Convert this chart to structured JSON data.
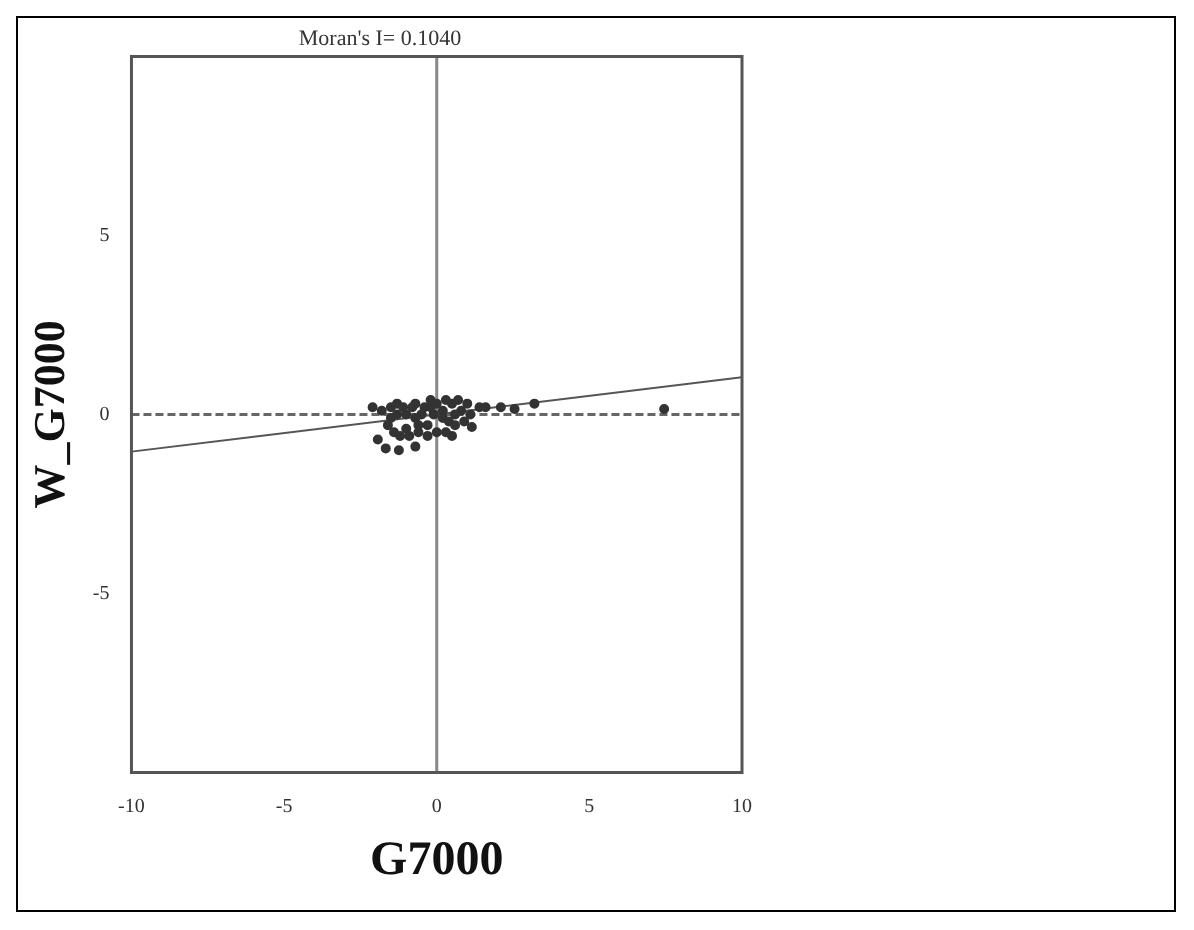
{
  "chart_data": {
    "type": "scatter",
    "title": "Moran's I= 0.1040",
    "xlabel": "G7000",
    "ylabel": "W_G7000",
    "xlim": [
      -10,
      10
    ],
    "xticks": [
      -10,
      -5,
      0,
      5,
      10
    ],
    "ylim": [
      -10,
      10
    ],
    "yticks": [
      -5,
      0,
      5
    ],
    "grid": false,
    "legend": false,
    "ref_lines": [
      {
        "axis": "x",
        "value": 0,
        "color": "#888888",
        "line_style": "solid"
      },
      {
        "axis": "y",
        "value": 0,
        "color": "#666666",
        "line_style": "dashed"
      }
    ],
    "series": [
      {
        "color": "#333333",
        "marker": "circle",
        "x": [
          -2.1,
          -1.93,
          -1.67,
          -1.24,
          -0.7,
          0.5,
          1.15,
          2.1,
          2.55,
          3.2,
          7.45,
          -1.8,
          -1.6,
          -1.5,
          -1.4,
          -1.3,
          -1.1,
          -1.0,
          -0.7,
          -0.6,
          -0.5,
          -0.4,
          -0.3,
          -0.2,
          0.0,
          0.2,
          0.3,
          0.4,
          0.5,
          0.6,
          0.7,
          1.0,
          1.4,
          1.6,
          -1.5,
          -1.2,
          -0.9,
          -0.6,
          -0.3,
          0.0,
          0.3,
          0.6,
          0.9,
          -1.3,
          -1.0,
          -0.7,
          -0.1,
          0.2,
          0.8,
          -0.8,
          -0.2,
          1.1
        ],
        "values": [
          0.2,
          -0.7,
          -0.95,
          -1.0,
          -0.9,
          -0.6,
          -0.35,
          0.2,
          0.15,
          0.3,
          0.15,
          0.1,
          -0.3,
          0.2,
          -0.5,
          0.3,
          0.2,
          -0.4,
          0.3,
          -0.5,
          0.0,
          0.2,
          -0.3,
          0.4,
          0.3,
          0.1,
          0.4,
          -0.2,
          0.3,
          0.0,
          0.4,
          0.3,
          0.2,
          0.2,
          -0.1,
          -0.6,
          -0.6,
          -0.3,
          -0.6,
          -0.5,
          -0.5,
          -0.3,
          -0.2,
          0.0,
          0.0,
          -0.1,
          0.0,
          -0.1,
          0.1,
          0.2,
          0.2,
          0.0
        ]
      },
      {
        "type": "line",
        "color": "#555555",
        "marker": "none",
        "x": [
          -10,
          10
        ],
        "values": [
          -1.04,
          1.04
        ]
      }
    ]
  }
}
